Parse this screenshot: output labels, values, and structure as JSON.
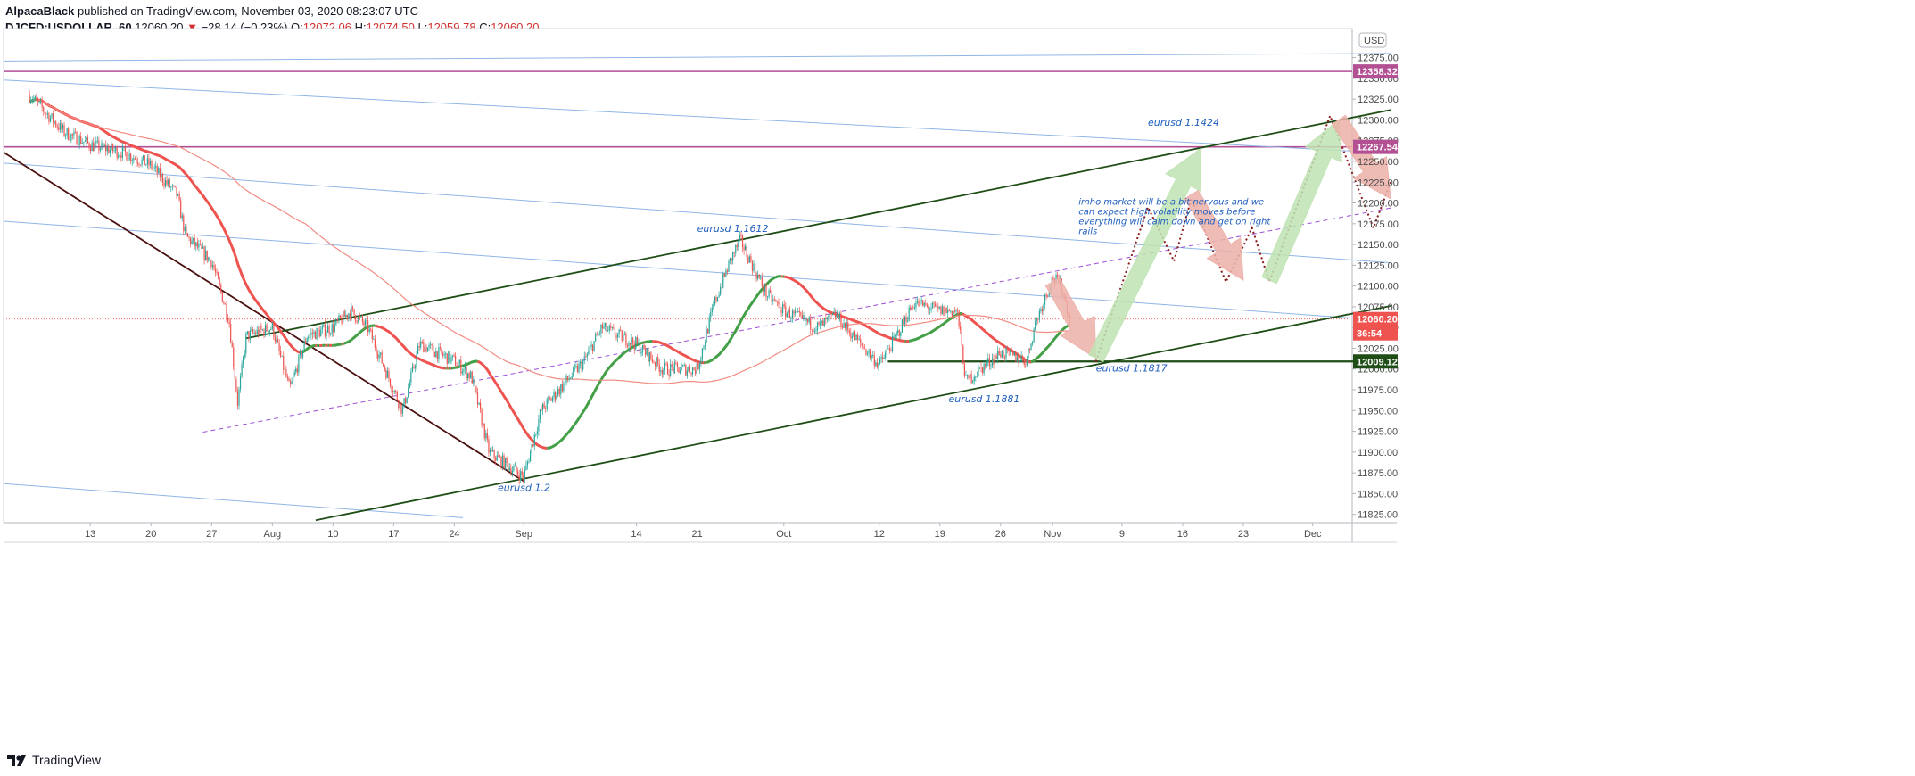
{
  "header": {
    "author": "AlpacaBlack",
    "published_text": "published on TradingView.com, November 03, 2020 08:23:07 UTC",
    "symbol": "DJCFD:USDOLLAR, 60",
    "last_price": "12060.20",
    "change_arrow": "▼",
    "change": "−28.14 (−0.23%)",
    "o_label": "O:",
    "o_value": "12072.06",
    "h_label": "H:",
    "h_value": "12074.50",
    "l_label": "L:",
    "l_value": "12059.78",
    "c_label": "C:",
    "c_value": "12060.20"
  },
  "footer": {
    "brand": "TradingView"
  },
  "colors": {
    "up_candle": "#26a69a",
    "down_candle": "#ef5350",
    "ma_fast_red": "#ef5350",
    "ma_slow_red": "#f28b82",
    "ma_green": "#43a047",
    "ma_green_slow": "#66bb6a",
    "trendline": "#1e4d16",
    "downtrend": "#4a0f0f",
    "blue_lines": "#8fb5e6",
    "purple_lines": "#b34f93",
    "dashed_mid": "#9c4fd6",
    "annotation_text": "#1f5fbf",
    "arrow_green": "#bfe3b3",
    "arrow_red": "#ecb0a8"
  },
  "chart_data": {
    "type": "candlestick",
    "title": "",
    "currency_badge": "USD",
    "y_range": [
      11815,
      12410
    ],
    "y_ticks": [
      11825,
      11850,
      11875,
      11900,
      11925,
      11950,
      11975,
      12000,
      12025,
      12050,
      12075,
      12100,
      12125,
      12150,
      12175,
      12200,
      12225,
      12250,
      12275,
      12300,
      12325,
      12350,
      12375
    ],
    "x_tick_labels": [
      {
        "label": "13",
        "date": "2020-07-13"
      },
      {
        "label": "20",
        "date": "2020-07-20"
      },
      {
        "label": "27",
        "date": "2020-07-27"
      },
      {
        "label": "Aug",
        "date": "2020-08-03"
      },
      {
        "label": "10",
        "date": "2020-08-10"
      },
      {
        "label": "17",
        "date": "2020-08-17"
      },
      {
        "label": "24",
        "date": "2020-08-24"
      },
      {
        "label": "Sep",
        "date": "2020-09-01"
      },
      {
        "label": "14",
        "date": "2020-09-14"
      },
      {
        "label": "21",
        "date": "2020-09-21"
      },
      {
        "label": "Oct",
        "date": "2020-10-01"
      },
      {
        "label": "12",
        "date": "2020-10-12"
      },
      {
        "label": "19",
        "date": "2020-10-19"
      },
      {
        "label": "26",
        "date": "2020-10-26"
      },
      {
        "label": "Nov",
        "date": "2020-11-01"
      },
      {
        "label": "9",
        "date": "2020-11-09"
      },
      {
        "label": "16",
        "date": "2020-11-16"
      },
      {
        "label": "23",
        "date": "2020-11-23"
      },
      {
        "label": "Dec",
        "date": "2020-12-01"
      }
    ],
    "price_path": [
      [
        "2020-07-06",
        12330
      ],
      [
        "2020-07-10",
        12285
      ],
      [
        "2020-07-13",
        12270
      ],
      [
        "2020-07-17",
        12260
      ],
      [
        "2020-07-20",
        12245
      ],
      [
        "2020-07-23",
        12210
      ],
      [
        "2020-07-24",
        12160
      ],
      [
        "2020-07-27",
        12130
      ],
      [
        "2020-07-29",
        12060
      ],
      [
        "2020-07-30",
        11960
      ],
      [
        "2020-07-31",
        12040
      ],
      [
        "2020-08-03",
        12050
      ],
      [
        "2020-08-05",
        11975
      ],
      [
        "2020-08-07",
        12040
      ],
      [
        "2020-08-10",
        12050
      ],
      [
        "2020-08-12",
        12070
      ],
      [
        "2020-08-14",
        12050
      ],
      [
        "2020-08-18",
        11950
      ],
      [
        "2020-08-20",
        12030
      ],
      [
        "2020-08-24",
        12010
      ],
      [
        "2020-08-26",
        11990
      ],
      [
        "2020-08-28",
        11900
      ],
      [
        "2020-09-01",
        11870
      ],
      [
        "2020-09-03",
        11950
      ],
      [
        "2020-09-08",
        12010
      ],
      [
        "2020-09-10",
        12050
      ],
      [
        "2020-09-14",
        12030
      ],
      [
        "2020-09-17",
        12000
      ],
      [
        "2020-09-21",
        12000
      ],
      [
        "2020-09-23",
        12080
      ],
      [
        "2020-09-25",
        12135
      ],
      [
        "2020-09-26",
        12155
      ],
      [
        "2020-09-29",
        12090
      ],
      [
        "2020-10-01",
        12070
      ],
      [
        "2020-10-05",
        12050
      ],
      [
        "2020-10-07",
        12065
      ],
      [
        "2020-10-09",
        12040
      ],
      [
        "2020-10-12",
        12005
      ],
      [
        "2020-10-14",
        12040
      ],
      [
        "2020-10-16",
        12080
      ],
      [
        "2020-10-19",
        12070
      ],
      [
        "2020-10-21",
        12070
      ],
      [
        "2020-10-22",
        11985
      ],
      [
        "2020-10-26",
        12020
      ],
      [
        "2020-10-29",
        12010
      ],
      [
        "2020-10-30",
        12055
      ],
      [
        "2020-11-01",
        12110
      ],
      [
        "2020-11-02",
        12100
      ],
      [
        "2020-11-03",
        12060
      ]
    ],
    "current_price": 12060.2,
    "price_labels": [
      {
        "text": "12358.32",
        "price": 12358.32,
        "color": "#b34f93"
      },
      {
        "text": "12267.54",
        "price": 12267.54,
        "color": "#b34f93"
      },
      {
        "text": "12060.20",
        "price": 12060.2,
        "color": "#ef5350"
      },
      {
        "text": "36:54",
        "price": 12043,
        "color": "#ef5350"
      },
      {
        "text": "12009.12",
        "price": 12009.12,
        "color": "#1e4d16"
      }
    ],
    "annotations": [
      {
        "text": "eurusd 1.1424",
        "date": "2020-11-12",
        "price": 12293
      },
      {
        "text": "eurusd 1.1612",
        "date": "2020-09-21",
        "price": 12165
      },
      {
        "text": "eurusd 1.1817",
        "date": "2020-11-06",
        "price": 11997
      },
      {
        "text": "eurusd 1.1881",
        "date": "2020-10-20",
        "price": 11960
      },
      {
        "text": "eurusd 1.2",
        "date": "2020-08-29",
        "price": 11853
      }
    ],
    "note": {
      "lines": [
        "imho market will be a bit nervous and we",
        "can expect high volatility moves before",
        "everything will calm down and get on right",
        "rails"
      ],
      "date": "2020-11-04",
      "price": 12198
    }
  }
}
